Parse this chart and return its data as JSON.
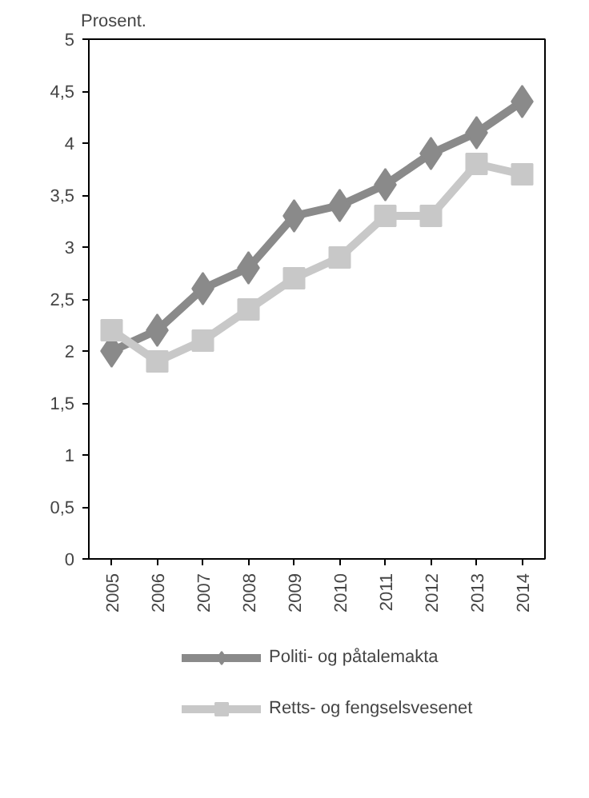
{
  "chart_data": {
    "type": "line",
    "ylabel": "Prosent.",
    "categories": [
      "2005",
      "2006",
      "2007",
      "2008",
      "2009",
      "2010",
      "2011",
      "2012",
      "2013",
      "2014"
    ],
    "series": [
      {
        "name": "Politi- og påtalemakta",
        "color": "#8a8a8a",
        "marker": "diamond",
        "values": [
          2.0,
          2.2,
          2.6,
          2.8,
          3.3,
          3.4,
          3.6,
          3.9,
          4.1,
          4.4
        ]
      },
      {
        "name": "Retts- og fengselsvesenet",
        "color": "#c8c8c8",
        "marker": "square",
        "values": [
          2.2,
          1.9,
          2.1,
          2.4,
          2.7,
          2.9,
          3.3,
          3.3,
          3.8,
          3.7
        ]
      }
    ],
    "ylim": [
      0,
      5
    ],
    "yticks": [
      0,
      {
        "value": 0.5,
        "label": "0,5"
      },
      1,
      {
        "value": 1.5,
        "label": "1,5"
      },
      2,
      {
        "value": 2.5,
        "label": "2,5"
      },
      3,
      {
        "value": 3.5,
        "label": "3,5"
      },
      4,
      {
        "value": 4.5,
        "label": "4,5"
      },
      5
    ],
    "grid": false,
    "legend": "bottom",
    "line_style": "solid"
  }
}
